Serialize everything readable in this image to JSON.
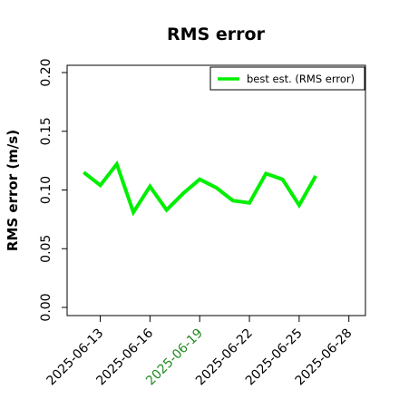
{
  "chart_data": {
    "type": "line",
    "title": "RMS error",
    "xlabel": "",
    "ylabel": "RMS error (m/s)",
    "ylim": [
      0,
      0.2
    ],
    "xlim": [
      "2025-06-11",
      "2025-06-29"
    ],
    "y_ticks": [
      "0.00",
      "0.05",
      "0.10",
      "0.15",
      "0.20"
    ],
    "x_ticks": [
      "2025-06-13",
      "2025-06-16",
      "2025-06-19",
      "2025-06-22",
      "2025-06-25",
      "2025-06-28"
    ],
    "highlight_tick": "2025-06-19",
    "highlight_color": "#228b22",
    "grid": false,
    "legend_position": "top-right",
    "series": [
      {
        "name": "best est. (RMS error)",
        "color": "#00ee00",
        "x": [
          "2025-06-12",
          "2025-06-13",
          "2025-06-14",
          "2025-06-15",
          "2025-06-16",
          "2025-06-17",
          "2025-06-18",
          "2025-06-19",
          "2025-06-20",
          "2025-06-21",
          "2025-06-22",
          "2025-06-23",
          "2025-06-24",
          "2025-06-25",
          "2025-06-26"
        ],
        "values": [
          0.115,
          0.104,
          0.122,
          0.081,
          0.103,
          0.083,
          0.097,
          0.109,
          0.102,
          0.091,
          0.089,
          0.114,
          0.109,
          0.087,
          0.112
        ]
      }
    ]
  }
}
